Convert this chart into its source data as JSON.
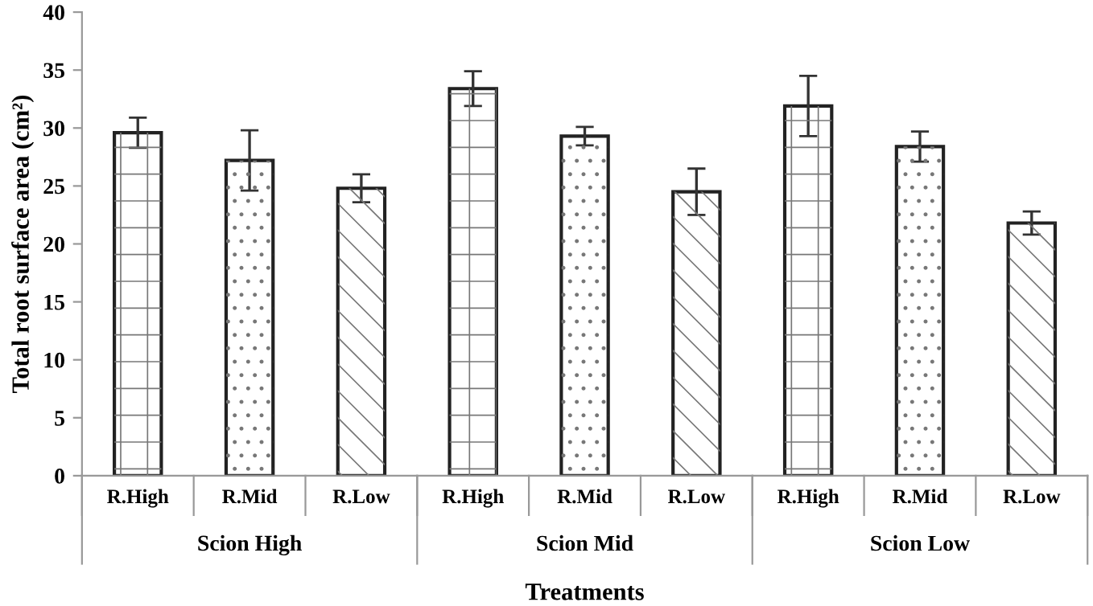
{
  "chart_data": {
    "type": "bar",
    "xlabel": "Treatments",
    "ylabel": "Total root surface area (cm²)",
    "categories": [
      "R.High",
      "R.Mid",
      "R.Low",
      "R.High",
      "R.Mid",
      "R.Low",
      "R.High",
      "R.Mid",
      "R.Low"
    ],
    "values": [
      29.6,
      27.2,
      24.8,
      33.4,
      29.3,
      24.5,
      31.9,
      28.4,
      21.8
    ],
    "errors": [
      1.3,
      2.6,
      1.2,
      1.5,
      0.8,
      2.0,
      2.6,
      1.3,
      1.0
    ],
    "colors": [
      "#ffffff",
      "#ffffff",
      "#ffffff",
      "#ffffff",
      "#ffffff",
      "#ffffff",
      "#ffffff",
      "#ffffff",
      "#ffffff"
    ],
    "annotations": [
      "Scion High",
      "Scion Mid",
      "Scion Low"
    ],
    "ylim": [
      0,
      40
    ],
    "yticks": [
      0,
      5,
      10,
      15,
      20,
      25,
      30,
      35,
      40
    ],
    "grid": false,
    "legend": false
  }
}
